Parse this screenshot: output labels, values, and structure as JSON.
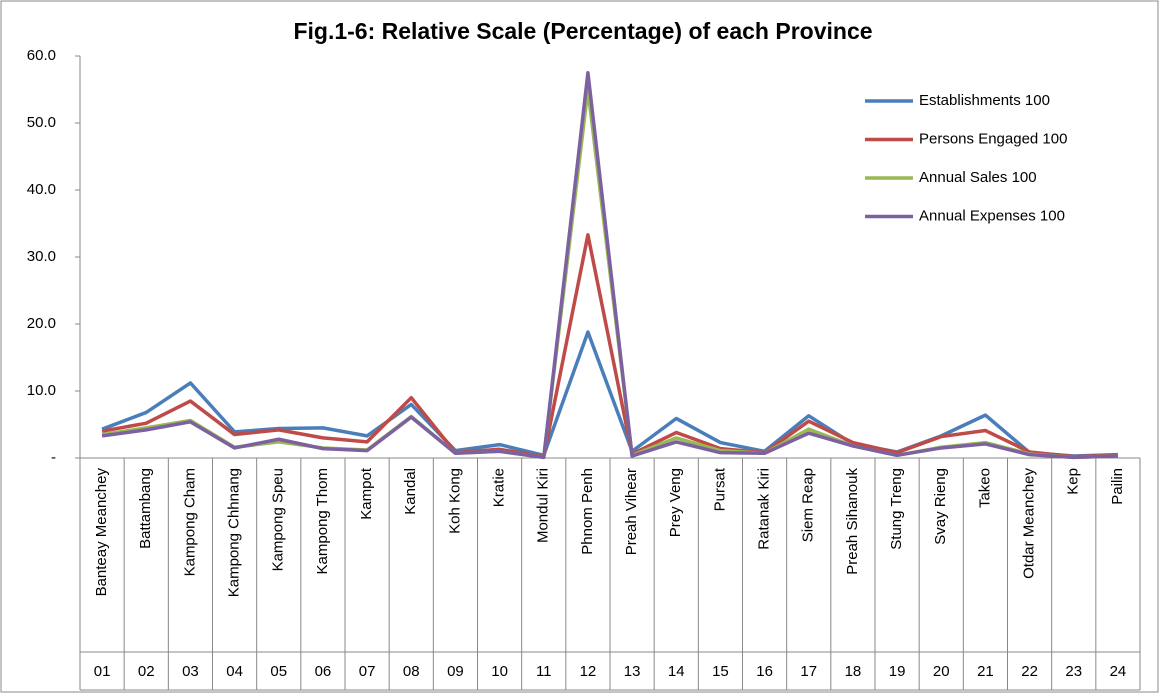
{
  "chart_data": {
    "type": "line",
    "title": "Fig.1-6: Relative Scale (Percentage)  of each Province",
    "categories": [
      "Banteay Meanchey",
      "Battambang",
      "Kampong Cham",
      "Kampong Chhnang",
      "Kampong Speu",
      "Kampong Thom",
      "Kampot",
      "Kandal",
      "Koh Kong",
      "Kratie",
      "Mondul Kiri",
      "Phnom Penh",
      "Preah Vihear",
      "Prey Veng",
      "Pursat",
      "Ratanak Kiri",
      "Siem Reap",
      "Preah Sihanouk",
      "Stung Treng",
      "Svay Rieng",
      "Takeo",
      "Otdar Meanchey",
      "Kep",
      "Pailin"
    ],
    "category_codes": [
      "01",
      "02",
      "03",
      "04",
      "05",
      "06",
      "07",
      "08",
      "09",
      "10",
      "11",
      "12",
      "13",
      "14",
      "15",
      "16",
      "17",
      "18",
      "19",
      "20",
      "21",
      "22",
      "23",
      "24"
    ],
    "series": [
      {
        "name": "Establishments 100",
        "color": "#4a7ebb",
        "values": [
          4.3,
          6.8,
          11.2,
          3.9,
          4.4,
          4.5,
          3.3,
          8.0,
          1.1,
          2.0,
          0.4,
          18.8,
          1.0,
          5.9,
          2.3,
          1.0,
          6.3,
          2.1,
          0.9,
          3.3,
          6.4,
          0.8,
          0.3,
          0.5
        ]
      },
      {
        "name": "Persons Engaged 100",
        "color": "#be4b48",
        "values": [
          4.0,
          5.2,
          8.5,
          3.5,
          4.2,
          3.0,
          2.4,
          9.0,
          0.8,
          1.3,
          0.2,
          33.3,
          0.6,
          3.8,
          1.4,
          0.8,
          5.5,
          2.3,
          0.8,
          3.2,
          4.1,
          0.9,
          0.2,
          0.4
        ]
      },
      {
        "name": "Annual Sales 100",
        "color": "#98b954",
        "values": [
          3.5,
          4.5,
          5.6,
          1.6,
          2.4,
          1.5,
          1.2,
          6.2,
          0.7,
          1.0,
          0.1,
          55.0,
          0.4,
          3.0,
          1.1,
          0.7,
          4.3,
          1.8,
          0.4,
          1.6,
          2.3,
          0.6,
          0.1,
          0.3
        ]
      },
      {
        "name": "Annual Expenses 100",
        "color": "#7d60a0",
        "values": [
          3.3,
          4.2,
          5.4,
          1.5,
          2.8,
          1.4,
          1.1,
          6.1,
          0.7,
          1.0,
          0.1,
          57.5,
          0.3,
          2.4,
          0.8,
          0.7,
          3.7,
          1.8,
          0.4,
          1.5,
          2.1,
          0.5,
          0.1,
          0.3
        ]
      }
    ],
    "ylim": [
      0,
      60
    ],
    "yticks": [
      {
        "value": 0,
        "label": "-"
      },
      {
        "value": 10,
        "label": "10.0"
      },
      {
        "value": 20,
        "label": "20.0"
      },
      {
        "value": 30,
        "label": "30.0"
      },
      {
        "value": 40,
        "label": "40.0"
      },
      {
        "value": 50,
        "label": "50.0"
      },
      {
        "value": 60,
        "label": "60.0"
      }
    ],
    "grid": false,
    "legend": "upper right"
  }
}
